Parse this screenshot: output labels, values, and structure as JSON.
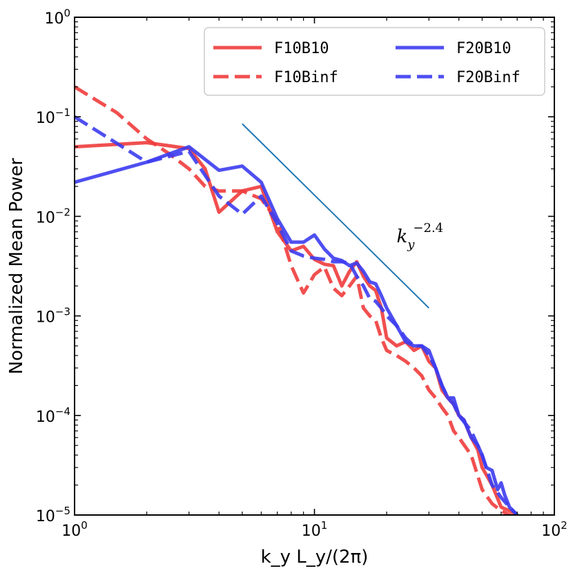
{
  "chart_data": {
    "type": "line",
    "title": "",
    "xlabel": "k_y L_y/(2π)",
    "ylabel": "Normalized Mean Power",
    "xscale": "log",
    "yscale": "log",
    "xlim": [
      1,
      100
    ],
    "ylim": [
      1e-05,
      1
    ],
    "x_ticks": [
      {
        "value": 1,
        "base": "10",
        "exp": "0"
      },
      {
        "value": 10,
        "base": "10",
        "exp": "1"
      },
      {
        "value": 100,
        "base": "10",
        "exp": "2"
      }
    ],
    "y_ticks": [
      {
        "value": 1,
        "base": "10",
        "exp": "0"
      },
      {
        "value": 0.1,
        "base": "10",
        "exp": "−1"
      },
      {
        "value": 0.01,
        "base": "10",
        "exp": "−2"
      },
      {
        "value": 0.001,
        "base": "10",
        "exp": "−3"
      },
      {
        "value": 0.0001,
        "base": "10",
        "exp": "−4"
      },
      {
        "value": 1e-05,
        "base": "10",
        "exp": "−5"
      }
    ],
    "legend_position": "top-right",
    "series": [
      {
        "name": "F10B10",
        "color": "#f03c3c",
        "dash": "solid",
        "x": [
          1,
          2,
          3,
          3.5,
          4,
          5,
          6,
          7,
          8,
          9,
          10,
          11,
          12,
          13,
          14,
          15,
          16,
          17,
          18,
          19,
          20,
          22,
          24,
          26,
          28,
          30,
          32,
          34,
          36,
          38,
          40,
          42,
          45,
          48,
          50,
          55,
          60,
          65,
          70
        ],
        "y": [
          0.05,
          0.055,
          0.048,
          0.03,
          0.011,
          0.018,
          0.02,
          0.007,
          0.0045,
          0.005,
          0.0037,
          0.0033,
          0.0032,
          0.002,
          0.0028,
          0.0035,
          0.0025,
          0.002,
          0.0018,
          0.0012,
          0.0006,
          0.0005,
          0.00055,
          0.00045,
          0.0005,
          0.00035,
          0.0003,
          0.00018,
          0.00015,
          0.00013,
          0.0001,
          9e-05,
          6e-05,
          4.5e-05,
          3e-05,
          2e-05,
          1.2e-05,
          1.1e-05,
          1e-05
        ]
      },
      {
        "name": "F10Binf",
        "color": "#f03c3c",
        "dash": "dashed",
        "x": [
          1,
          1.5,
          2,
          2.5,
          3,
          3.5,
          4,
          5,
          6,
          7,
          8,
          9,
          10,
          11,
          12,
          13,
          14,
          15,
          16,
          17,
          18,
          19,
          20,
          22,
          24,
          26,
          28,
          30,
          32,
          34,
          36,
          38,
          40,
          45,
          50,
          55,
          60,
          65,
          70
        ],
        "y": [
          0.2,
          0.11,
          0.06,
          0.042,
          0.03,
          0.02,
          0.018,
          0.018,
          0.015,
          0.009,
          0.0032,
          0.0017,
          0.0026,
          0.0031,
          0.0019,
          0.0016,
          0.002,
          0.0025,
          0.0012,
          0.001,
          0.0009,
          0.0006,
          0.00045,
          0.0004,
          0.00035,
          0.0003,
          0.00025,
          0.00018,
          0.00015,
          0.00012,
          0.0001,
          7e-05,
          6e-05,
          4e-05,
          1.8e-05,
          1.3e-05,
          1.1e-05,
          1e-05,
          9e-06
        ]
      },
      {
        "name": "F20B10",
        "color": "#3c3cf0",
        "dash": "solid",
        "x": [
          1,
          2,
          3,
          4,
          5,
          6,
          7,
          8,
          9,
          10,
          11,
          12,
          13,
          14,
          15,
          16,
          17,
          18,
          19,
          20,
          22,
          24,
          26,
          28,
          30,
          32,
          34,
          36,
          38,
          40,
          42,
          45,
          48,
          50,
          52,
          55,
          58,
          60,
          62,
          65,
          70
        ],
        "y": [
          0.022,
          0.035,
          0.05,
          0.029,
          0.032,
          0.022,
          0.0095,
          0.0055,
          0.0055,
          0.0065,
          0.0047,
          0.0038,
          0.0036,
          0.0032,
          0.0034,
          0.0028,
          0.0022,
          0.0021,
          0.0016,
          0.0012,
          0.0008,
          0.00055,
          0.0005,
          0.0005,
          0.00045,
          0.0003,
          0.0002,
          0.00015,
          0.00015,
          0.0001,
          9e-05,
          6e-05,
          5e-05,
          4e-05,
          3e-05,
          2.8e-05,
          1.8e-05,
          2.1e-05,
          1.6e-05,
          1.2e-05,
          1e-05
        ]
      },
      {
        "name": "F20Binf",
        "color": "#3c3cf0",
        "dash": "dashed",
        "x": [
          1,
          2,
          3,
          4,
          5,
          6,
          7,
          8,
          9,
          10,
          11,
          12,
          13,
          14,
          15,
          16,
          17,
          18,
          19,
          20,
          22,
          24,
          26,
          28,
          30,
          32,
          34,
          36,
          38,
          40,
          45,
          50,
          55,
          60,
          65,
          70
        ],
        "y": [
          0.1,
          0.035,
          0.045,
          0.016,
          0.0105,
          0.016,
          0.0085,
          0.0045,
          0.004,
          0.0038,
          0.0037,
          0.0035,
          0.0035,
          0.0034,
          0.0025,
          0.002,
          0.0015,
          0.0014,
          0.0012,
          0.001,
          0.0008,
          0.0006,
          0.0005,
          0.0005,
          0.0004,
          0.0003,
          0.0002,
          0.00015,
          0.00013,
          0.0001,
          7e-05,
          4e-05,
          2e-05,
          1.5e-05,
          1.2e-05,
          1e-05
        ]
      }
    ],
    "reference_line": {
      "x": [
        5,
        30
      ],
      "y": [
        0.085,
        0.0012
      ],
      "color": "#1f77b4"
    },
    "annotation": {
      "base": "k",
      "sub": "y",
      "sup": "−2.4",
      "x": 22,
      "y": 0.0055
    }
  }
}
